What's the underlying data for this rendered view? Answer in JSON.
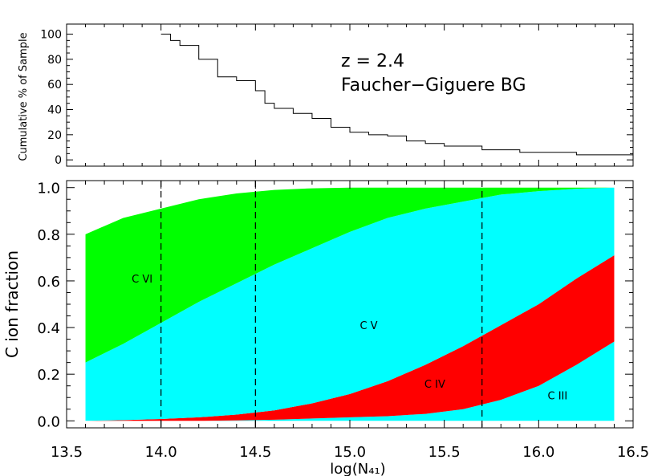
{
  "chart_data": [
    {
      "type": "line",
      "panel": "top",
      "ylabel": "Cumulative % of Sample",
      "xlim": [
        13.5,
        16.5
      ],
      "ylim": [
        -5,
        108
      ],
      "yticks": [
        "0",
        "20",
        "40",
        "60",
        "80",
        "100"
      ],
      "yticks_values": [
        0,
        20,
        40,
        60,
        80,
        100
      ],
      "annotations": [
        "z = 2.4",
        "Faucher−Giguere BG"
      ],
      "x": [
        14.0,
        14.05,
        14.1,
        14.2,
        14.3,
        14.4,
        14.5,
        14.55,
        14.6,
        14.7,
        14.8,
        14.9,
        15.0,
        15.1,
        15.2,
        15.3,
        15.4,
        15.5,
        15.7,
        15.9,
        16.2,
        16.5
      ],
      "y": [
        100,
        95,
        91,
        80,
        66,
        63,
        55,
        45,
        41,
        37,
        33,
        26,
        22,
        20,
        19,
        15,
        13,
        11,
        8,
        6,
        4,
        1
      ]
    },
    {
      "type": "area",
      "panel": "bottom",
      "xlabel": "log(N₄₁)",
      "ylabel": "C ion fraction",
      "xlim": [
        13.5,
        16.5
      ],
      "ylim": [
        -0.03,
        1.03
      ],
      "xticks": [
        "13.5",
        "14.0",
        "14.5",
        "15.0",
        "15.5",
        "16.0",
        "16.5"
      ],
      "xticks_values": [
        13.5,
        14.0,
        14.5,
        15.0,
        15.5,
        16.0,
        16.5
      ],
      "yticks": [
        "0.0",
        "0.2",
        "0.4",
        "0.6",
        "0.8",
        "1.0"
      ],
      "yticks_values": [
        0.0,
        0.2,
        0.4,
        0.6,
        0.8,
        1.0
      ],
      "dashed_vlines": [
        14.0,
        14.5,
        15.7
      ],
      "x": [
        13.6,
        13.8,
        14.0,
        14.2,
        14.4,
        14.6,
        14.8,
        15.0,
        15.2,
        15.4,
        15.6,
        15.8,
        16.0,
        16.2,
        16.4
      ],
      "boundaries": {
        "iii_iv": [
          0.0,
          0.0,
          0.0,
          0.0,
          0.002,
          0.005,
          0.01,
          0.015,
          0.02,
          0.03,
          0.05,
          0.09,
          0.15,
          0.24,
          0.34
        ],
        "iv_v": [
          0.0,
          0.003,
          0.008,
          0.015,
          0.027,
          0.045,
          0.075,
          0.115,
          0.17,
          0.24,
          0.32,
          0.41,
          0.5,
          0.61,
          0.71
        ],
        "v_vi": [
          0.25,
          0.33,
          0.42,
          0.51,
          0.59,
          0.67,
          0.74,
          0.81,
          0.87,
          0.91,
          0.94,
          0.97,
          0.985,
          0.995,
          1.0
        ],
        "vi_top": [
          0.8,
          0.87,
          0.91,
          0.95,
          0.975,
          0.99,
          0.997,
          1.0,
          1.0,
          1.0,
          1.0,
          1.0,
          1.0,
          1.0,
          1.0
        ]
      },
      "series": [
        {
          "name": "C III",
          "color": "#00ffff"
        },
        {
          "name": "C IV",
          "color": "#ff0000"
        },
        {
          "name": "C V",
          "color": "#00ffff"
        },
        {
          "name": "C VI",
          "color": "#00ff00"
        }
      ]
    }
  ]
}
